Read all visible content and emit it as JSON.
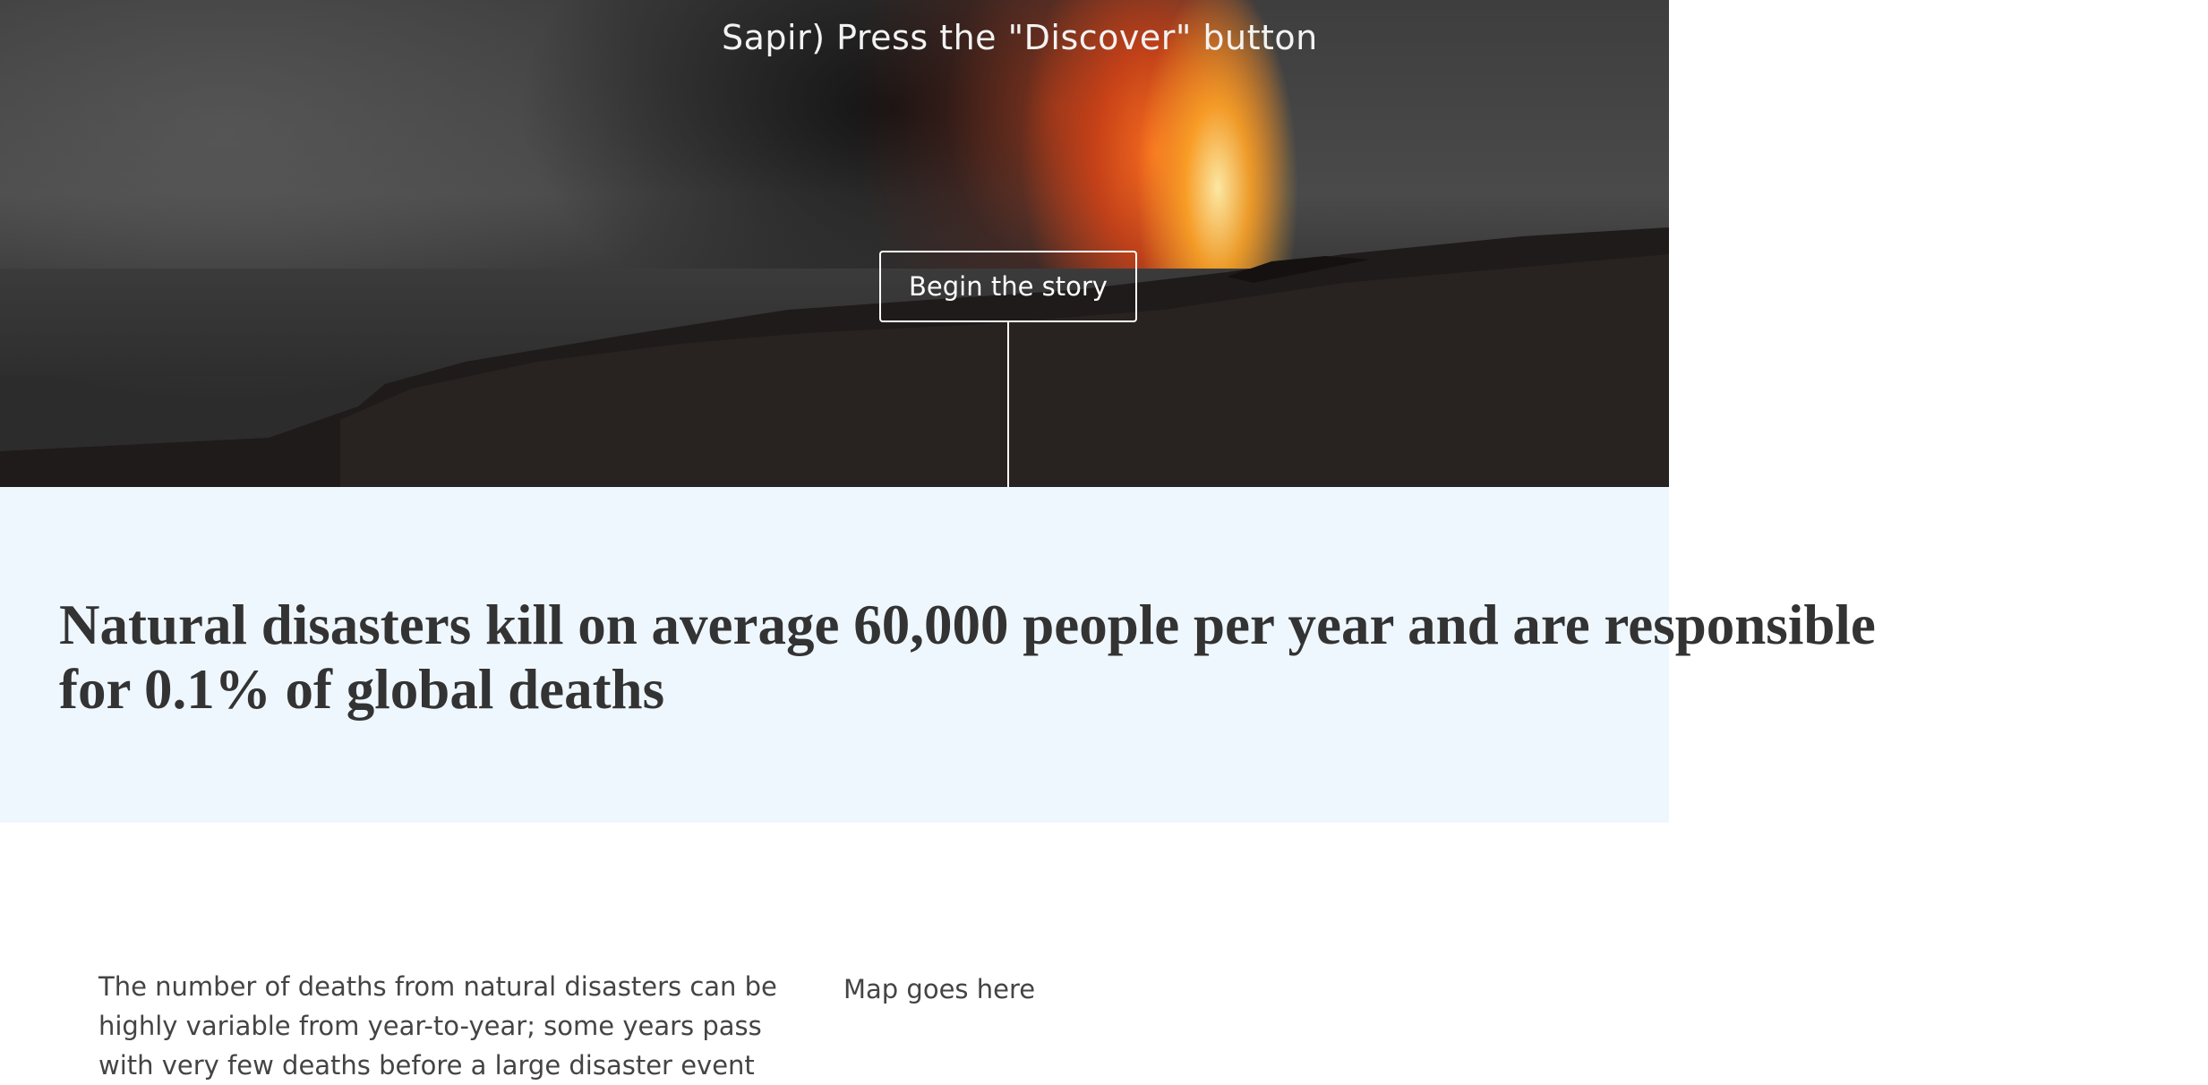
{
  "hero": {
    "caption": "Sapir) Press the \"Discover\" button",
    "begin_button_label": "Begin the story"
  },
  "headline": {
    "line1": "Natural disasters kill on average 60,000 people per year and are responsible",
    "line2": "for 0.1% of global deaths"
  },
  "body": {
    "paragraph": "The number of deaths from natural disasters can be highly variable from year-to-year; some years pass with very few deaths before a large disaster event"
  },
  "map": {
    "placeholder": "Map goes here"
  }
}
